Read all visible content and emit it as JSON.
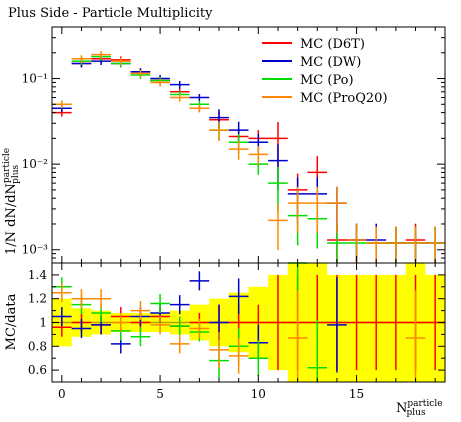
{
  "title": "Plus Side - Particle Multiplicity",
  "chart_data": [
    {
      "type": "line",
      "panel": "main",
      "title": "Plus Side - Particle Multiplicity",
      "ylabel": "1/N dN/dN_plus^particle",
      "ylabel_parts": {
        "main": "1/N dN/dN",
        "sup": "particle",
        "sub": "plus"
      },
      "yscale": "log",
      "ylim": [
        0.0007,
        0.4
      ],
      "xlim": [
        -0.5,
        19.5
      ],
      "ytick_labels": [
        "10⁻¹",
        "10⁻²",
        "10⁻³"
      ],
      "legend_position": "top-right",
      "series": [
        {
          "name": "MC (D6T)",
          "color": "#ff0000",
          "x": [
            0,
            1,
            2,
            3,
            4,
            5,
            6,
            7,
            8,
            9,
            10,
            11,
            12,
            13,
            14,
            15,
            16,
            17,
            18,
            19
          ],
          "values": [
            0.04,
            0.15,
            0.17,
            0.165,
            0.12,
            0.095,
            0.07,
            0.045,
            0.033,
            0.021,
            0.02,
            0.02,
            0.005,
            0.008,
            0.0013,
            0.0013,
            0.0012,
            0.0012,
            0.0013,
            0.0012
          ]
        },
        {
          "name": "MC (DW)",
          "color": "#0000cc",
          "x": [
            0,
            1,
            2,
            3,
            4,
            5,
            6,
            7,
            8,
            9,
            10,
            11,
            12,
            13,
            14,
            15,
            16,
            17,
            18,
            19
          ],
          "values": [
            0.045,
            0.15,
            0.16,
            0.15,
            0.12,
            0.1,
            0.085,
            0.06,
            0.035,
            0.025,
            0.018,
            0.011,
            0.0045,
            0.0045,
            0.0035,
            0.0013,
            0.0013,
            0.0012,
            0.0012,
            0.0012
          ]
        },
        {
          "name": "MC (Po)",
          "color": "#00dd00",
          "x": [
            0,
            1,
            2,
            3,
            4,
            5,
            6,
            7,
            8,
            9,
            10,
            11,
            12,
            13,
            14,
            15,
            16,
            17,
            18,
            19
          ],
          "values": [
            0.05,
            0.16,
            0.18,
            0.15,
            0.11,
            0.095,
            0.065,
            0.05,
            0.025,
            0.018,
            0.01,
            0.006,
            0.0025,
            0.0023,
            0.0012,
            0.0012,
            0.0012,
            0.0012,
            0.0012,
            0.0012
          ]
        },
        {
          "name": "MC (ProQ20)",
          "color": "#ff8800",
          "x": [
            0,
            1,
            2,
            3,
            4,
            5,
            6,
            7,
            8,
            9,
            10,
            11,
            12,
            13,
            14,
            15,
            16,
            17,
            18,
            19
          ],
          "values": [
            0.05,
            0.17,
            0.19,
            0.16,
            0.115,
            0.09,
            0.06,
            0.045,
            0.025,
            0.015,
            0.013,
            0.0022,
            0.0035,
            0.0035,
            0.0035,
            0.0013,
            0.0012,
            0.0012,
            0.0012,
            0.0012
          ]
        }
      ]
    },
    {
      "type": "line",
      "panel": "ratio",
      "ylabel": "MC/data",
      "xlabel": "N_plus^particle",
      "xlabel_parts": {
        "main": "N",
        "sup": "particle",
        "sub": "plus"
      },
      "ylim": [
        0.5,
        1.5
      ],
      "xlim": [
        -0.5,
        19.5
      ],
      "yticks": [
        0.6,
        0.8,
        1,
        1.2,
        1.4
      ],
      "ytick_labels": [
        "0.6",
        "0.8",
        "1",
        "1.2",
        "1.4"
      ],
      "xticks": [
        0,
        5,
        10,
        15
      ],
      "xtick_labels": [
        "0",
        "5",
        "10",
        "15"
      ],
      "data_band": {
        "color": "#ffff00",
        "x": [
          0,
          1,
          2,
          3,
          4,
          5,
          6,
          7,
          8,
          9,
          10,
          11,
          12,
          13,
          14,
          15,
          16,
          17,
          18,
          19
        ],
        "lower": [
          0.8,
          0.88,
          0.9,
          0.92,
          0.92,
          0.92,
          0.9,
          0.85,
          0.8,
          0.75,
          0.7,
          0.6,
          0.5,
          0.5,
          0.5,
          0.5,
          0.5,
          0.5,
          0.5,
          0.5
        ],
        "upper": [
          1.2,
          1.12,
          1.1,
          1.08,
          1.08,
          1.08,
          1.1,
          1.15,
          1.2,
          1.25,
          1.3,
          1.4,
          1.5,
          1.5,
          1.4,
          1.4,
          1.4,
          1.4,
          1.5,
          1.4
        ]
      },
      "series": [
        {
          "name": "MC (D6T)",
          "color": "#ff0000",
          "x": [
            0,
            1,
            2,
            3,
            4,
            5,
            6,
            7,
            8,
            9,
            10,
            11,
            12,
            13,
            14,
            15,
            16,
            17,
            18,
            19
          ],
          "values": [
            0.96,
            1.0,
            0.98,
            1.05,
            1.0,
            1.05,
            0.97,
            1.0,
            1.0,
            1.0,
            1.0,
            1.0,
            1.0,
            1.0,
            1.0,
            1.0,
            1.0,
            1.0,
            1.0,
            1.0
          ]
        },
        {
          "name": "MC (DW)",
          "color": "#0000cc",
          "x": [
            0,
            1,
            2,
            3,
            4,
            5,
            6,
            7,
            8,
            9,
            10,
            11,
            12,
            13,
            14,
            15,
            16,
            17,
            18,
            19
          ],
          "values": [
            1.05,
            0.95,
            0.98,
            0.82,
            1.05,
            1.08,
            1.15,
            1.35,
            1.0,
            1.22,
            0.83,
            null,
            null,
            null,
            0.98,
            null,
            null,
            null,
            null,
            null
          ]
        },
        {
          "name": "MC (Po)",
          "color": "#00dd00",
          "x": [
            0,
            1,
            2,
            3,
            4,
            5,
            6,
            7,
            8,
            9,
            10,
            11,
            12,
            13,
            14,
            15,
            16,
            17,
            18,
            19
          ],
          "values": [
            1.3,
            1.15,
            1.08,
            0.93,
            0.88,
            1.16,
            0.97,
            0.92,
            0.68,
            0.8,
            0.7,
            null,
            1.5,
            0.62,
            null,
            null,
            null,
            null,
            null,
            null
          ]
        },
        {
          "name": "MC (ProQ20)",
          "color": "#ff8800",
          "x": [
            0,
            1,
            2,
            3,
            4,
            5,
            6,
            7,
            8,
            9,
            10,
            11,
            12,
            13,
            14,
            15,
            16,
            17,
            18,
            19
          ],
          "values": [
            1.25,
            1.2,
            1.2,
            1.0,
            1.1,
            0.98,
            0.82,
            0.95,
            0.77,
            0.72,
            null,
            null,
            0.87,
            null,
            null,
            null,
            null,
            null,
            0.87,
            null
          ]
        }
      ]
    }
  ]
}
